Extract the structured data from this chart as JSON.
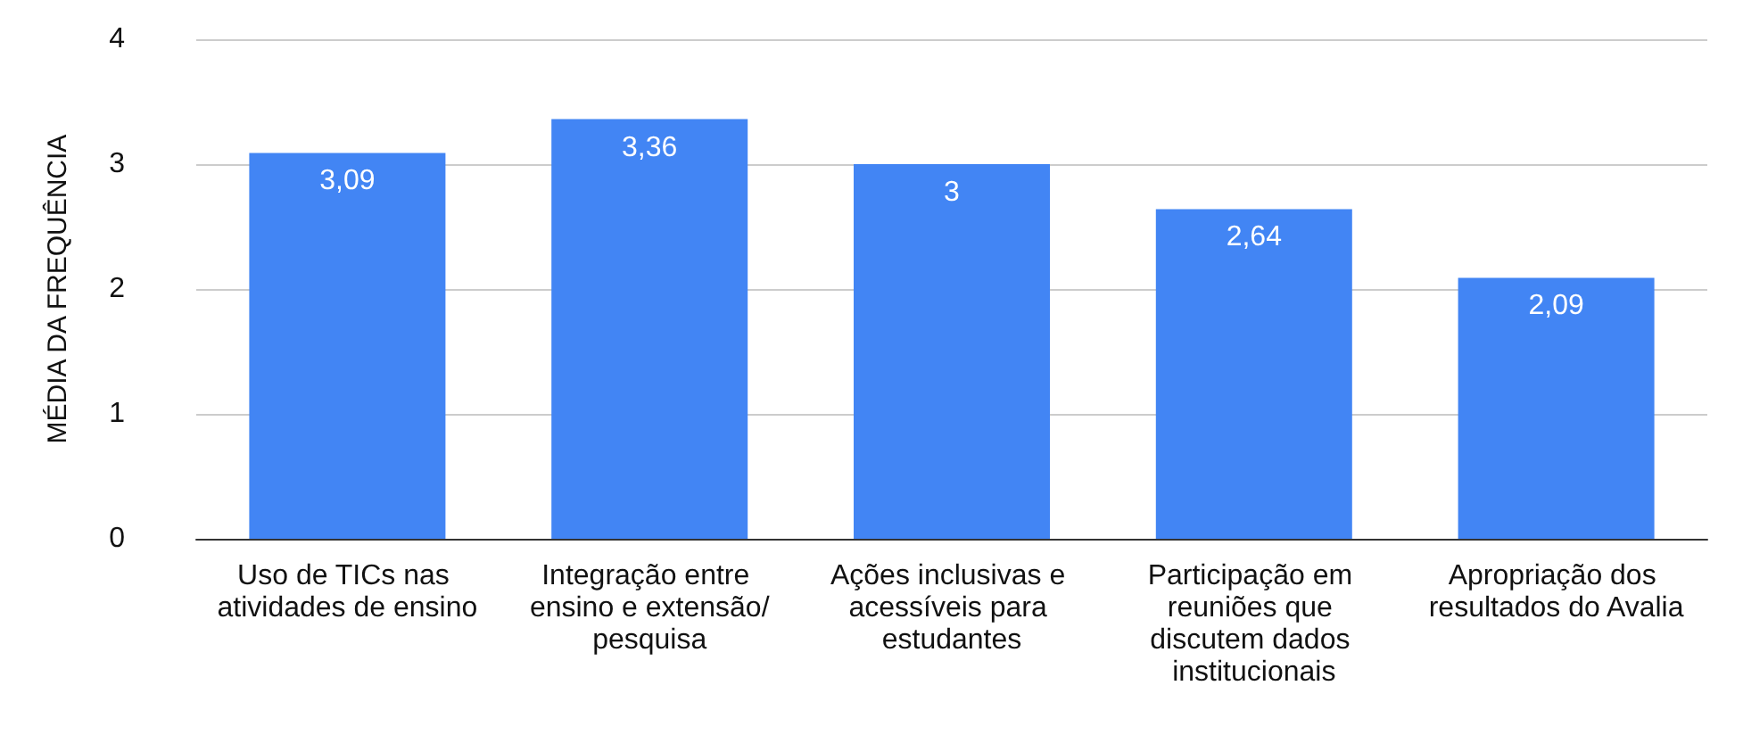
{
  "chart_data": {
    "type": "bar",
    "ylabel": "MÉDIA DA FREQUÊNCIA",
    "categories": [
      "Uso de TICs nas atividades de ensino",
      "Integração entre ensino e extensão/pesquisa",
      "Ações inclusivas e acessíveis para estudantes",
      "Participação em reuniões que discutem dados institucionais",
      "Apropriação dos resultados do Avalia"
    ],
    "values": [
      3.09,
      3.36,
      3,
      2.64,
      2.09
    ],
    "value_labels": [
      "3,09",
      "3,36",
      "3",
      "2,64",
      "2,09"
    ],
    "color": "#4285f4",
    "ylim": [
      0,
      4
    ],
    "yticks": [
      0,
      1,
      2,
      3,
      4
    ],
    "grid": true
  }
}
